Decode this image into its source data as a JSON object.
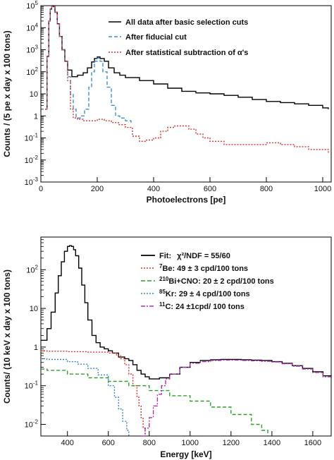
{
  "chart_data": [
    {
      "type": "line",
      "title": "",
      "xlabel": "Photoelectrons [pe]",
      "ylabel": "Counts / (5 pe x day x 100 tons)",
      "xlim": [
        0,
        1030
      ],
      "ylim": [
        0.001,
        100000
      ],
      "yscale": "log",
      "grid": false,
      "legend_position": "top-right",
      "x_ticks": [
        "0",
        "200",
        "400",
        "600",
        "800",
        "1000"
      ],
      "x_tick_values": [
        0,
        200,
        400,
        600,
        800,
        1000
      ],
      "y_ticks": [
        "10-3",
        "10-2",
        "10-1",
        "1",
        "10",
        "102",
        "103",
        "104",
        "105"
      ],
      "y_tick_values": [
        0.001,
        0.01,
        0.1,
        1,
        10,
        100,
        1000,
        10000,
        100000
      ],
      "series": [
        {
          "name": "All data after basic selection cuts",
          "color": "#000000",
          "style": "solid",
          "x": [
            15,
            22,
            28,
            33,
            38,
            43,
            50,
            58,
            66,
            75,
            85,
            95,
            110,
            130,
            150,
            165,
            180,
            190,
            200,
            210,
            225,
            240,
            260,
            280,
            300,
            350,
            400,
            450,
            500,
            550,
            600,
            650,
            700,
            750,
            800,
            850,
            900,
            950,
            1000,
            1020
          ],
          "y": [
            2,
            500,
            20000,
            70000,
            100000,
            90000,
            50000,
            15000,
            4000,
            1000,
            300,
            120,
            60,
            70,
            90,
            150,
            280,
            400,
            470,
            400,
            300,
            150,
            90,
            70,
            55,
            40,
            28,
            18,
            13,
            11,
            10,
            8.5,
            7,
            5.5,
            4.5,
            4,
            3.5,
            3,
            2.3,
            2
          ]
        },
        {
          "name": "After fiducial cut",
          "color": "#3a8fd6",
          "style": "dashed",
          "x": [
            15,
            22,
            28,
            33,
            38,
            43,
            50,
            58,
            66,
            75,
            85,
            95,
            105,
            115,
            125,
            140,
            155,
            170,
            180,
            190,
            200,
            210,
            220,
            235,
            250,
            265,
            280,
            300,
            320
          ],
          "y": [
            2,
            500,
            20000,
            70000,
            100000,
            90000,
            50000,
            15000,
            4000,
            1000,
            300,
            60,
            10,
            2,
            0.8,
            1,
            2,
            20,
            100,
            300,
            420,
            300,
            100,
            20,
            3,
            1,
            0.8,
            0.6,
            0.5
          ]
        },
        {
          "name": "After statistical subtraction of α's",
          "color": "#d93030",
          "style": "dotted",
          "x": [
            15,
            22,
            28,
            33,
            38,
            43,
            50,
            58,
            66,
            75,
            85,
            95,
            105,
            115,
            130,
            150,
            175,
            200,
            225,
            250,
            275,
            300,
            325,
            350,
            375,
            400,
            425,
            450,
            475,
            500,
            525,
            550,
            575,
            600,
            650,
            700,
            750,
            800,
            850,
            900,
            950,
            1000,
            1020
          ],
          "y": [
            2,
            500,
            20000,
            70000,
            100000,
            90000,
            50000,
            15000,
            4000,
            1000,
            300,
            40,
            2,
            0.8,
            0.7,
            0.6,
            0.6,
            0.7,
            0.6,
            0.5,
            0.4,
            0.3,
            0.12,
            0.07,
            0.08,
            0.1,
            0.2,
            0.3,
            0.35,
            0.35,
            0.25,
            0.15,
            0.1,
            0.07,
            0.05,
            0.05,
            0.05,
            0.06,
            0.05,
            0.04,
            0.03,
            0.03,
            0.02
          ]
        }
      ]
    },
    {
      "type": "line",
      "title": "",
      "xlabel": "Energy [keV]",
      "ylabel": "Counts/ (10 keV x day x 100 tons)",
      "xlim": [
        270,
        1690
      ],
      "ylim": [
        0.005,
        700
      ],
      "yscale": "log",
      "grid": false,
      "legend_position": "top-right",
      "x_ticks": [
        "400",
        "600",
        "800",
        "1000",
        "1200",
        "1400",
        "1600"
      ],
      "x_tick_values": [
        400,
        600,
        800,
        1000,
        1200,
        1400,
        1600
      ],
      "y_ticks": [
        "10-2",
        "10-1",
        "1",
        "10",
        "102"
      ],
      "y_tick_values": [
        0.01,
        0.1,
        1,
        10,
        100
      ],
      "series": [
        {
          "name": "Fit:",
          "legend_suffix": "χ²/NDF = 55/60",
          "color": "#000000",
          "style": "solid",
          "x": [
            270,
            300,
            320,
            340,
            355,
            370,
            385,
            400,
            410,
            420,
            430,
            440,
            455,
            470,
            485,
            500,
            520,
            540,
            560,
            580,
            600,
            620,
            650,
            680,
            700,
            720,
            740,
            760,
            780,
            800,
            850,
            900,
            950,
            1000,
            1050,
            1100,
            1150,
            1200,
            1250,
            1300,
            1350,
            1400,
            1450,
            1500,
            1550,
            1600,
            1650,
            1690
          ],
          "y": [
            1.5,
            3,
            8,
            25,
            70,
            160,
            300,
            400,
            420,
            400,
            330,
            230,
            110,
            40,
            14,
            5,
            2,
            1.3,
            1.0,
            0.9,
            0.8,
            0.7,
            0.55,
            0.5,
            0.45,
            0.35,
            0.25,
            0.2,
            0.17,
            0.15,
            0.16,
            0.2,
            0.3,
            0.4,
            0.45,
            0.47,
            0.48,
            0.48,
            0.47,
            0.46,
            0.45,
            0.42,
            0.38,
            0.33,
            0.28,
            0.23,
            0.18,
            0.16
          ]
        },
        {
          "name": "Be: 49 ± 3 cpd/100 tons",
          "prefix": "7",
          "color": "#d93030",
          "style": "dotted",
          "x": [
            270,
            300,
            400,
            500,
            600,
            640,
            660,
            680,
            700,
            720,
            740,
            750,
            760,
            770,
            780
          ],
          "y": [
            0.8,
            0.78,
            0.76,
            0.74,
            0.7,
            0.6,
            0.5,
            0.35,
            0.2,
            0.1,
            0.05,
            0.03,
            0.015,
            0.008,
            0.005
          ]
        },
        {
          "name": "Bi+CNO: 20 ± 2 cpd/100 tons",
          "prefix": "210",
          "color": "#2aa02a",
          "style": "dashed",
          "x": [
            270,
            300,
            400,
            500,
            600,
            700,
            800,
            900,
            1000,
            1100,
            1200,
            1300,
            1350,
            1380
          ],
          "y": [
            0.27,
            0.25,
            0.2,
            0.16,
            0.13,
            0.1,
            0.075,
            0.055,
            0.04,
            0.028,
            0.018,
            0.01,
            0.007,
            0.005
          ]
        },
        {
          "name": "Kr: 29 ± 4 cpd/100 tons",
          "prefix": "85",
          "color": "#3a7fd0",
          "style": "dotted",
          "x": [
            270,
            300,
            400,
            450,
            500,
            550,
            600,
            630,
            650,
            670,
            690,
            700
          ],
          "y": [
            0.5,
            0.48,
            0.42,
            0.36,
            0.28,
            0.19,
            0.1,
            0.05,
            0.025,
            0.012,
            0.007,
            0.005
          ]
        },
        {
          "name": "C: 24 ±1cpd/ 100 tons",
          "prefix": "11",
          "color": "#b030b0",
          "style": "dashdot",
          "x": [
            760,
            780,
            800,
            820,
            840,
            860,
            880,
            900,
            950,
            1000,
            1050,
            1100,
            1150,
            1200,
            1250,
            1300,
            1350,
            1400,
            1450,
            1500,
            1550,
            1600,
            1650,
            1690
          ],
          "y": [
            0.005,
            0.008,
            0.015,
            0.03,
            0.06,
            0.1,
            0.15,
            0.2,
            0.3,
            0.38,
            0.42,
            0.45,
            0.46,
            0.46,
            0.45,
            0.44,
            0.43,
            0.41,
            0.37,
            0.32,
            0.27,
            0.22,
            0.17,
            0.15
          ]
        }
      ]
    }
  ]
}
